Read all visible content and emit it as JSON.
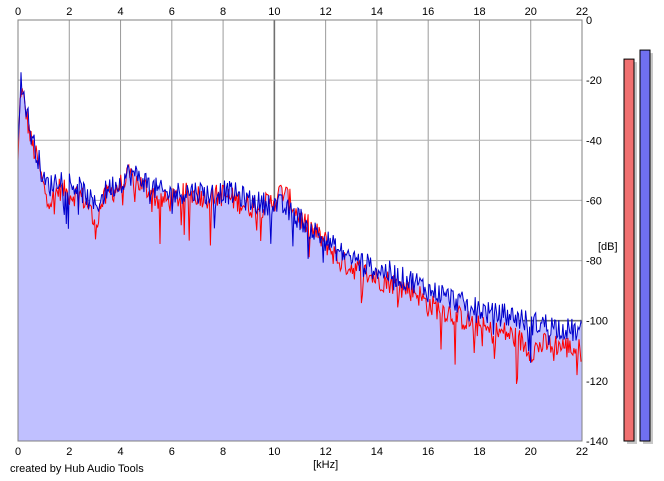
{
  "chart_data": {
    "type": "line",
    "title": "",
    "xlabel": "[kHz]",
    "ylabel": "[dB]",
    "xlim": [
      0,
      22
    ],
    "ylim": [
      -140,
      0
    ],
    "x_ticks": [
      "0",
      "2",
      "4",
      "6",
      "8",
      "10",
      "12",
      "14",
      "16",
      "18",
      "20",
      "22"
    ],
    "y_ticks": [
      "0",
      "-20",
      "-40",
      "-60",
      "-80",
      "-100",
      "-120",
      "-140"
    ],
    "grid": true,
    "series": [
      {
        "color": "#ff0000",
        "x": [
          0,
          0.1,
          0.3,
          0.5,
          0.8,
          1.0,
          1.3,
          1.6,
          2.0,
          2.4,
          2.8,
          3.0,
          3.2,
          3.5,
          4.0,
          4.3,
          4.7,
          5.0,
          5.5,
          6.0,
          6.5,
          7.0,
          7.5,
          8.0,
          8.5,
          9.0,
          9.5,
          10.0,
          10.3,
          10.6,
          11.0,
          11.5,
          12.0,
          12.5,
          13.0,
          13.5,
          14.0,
          14.5,
          15.0,
          15.5,
          16.0,
          16.5,
          17.0,
          17.5,
          18.0,
          18.5,
          19.0,
          19.5,
          20.0,
          20.5,
          21.0,
          21.5,
          22.0
        ],
        "values": [
          -48,
          -22,
          -30,
          -40,
          -48,
          -56,
          -60,
          -56,
          -58,
          -58,
          -62,
          -70,
          -62,
          -58,
          -55,
          -52,
          -54,
          -56,
          -60,
          -60,
          -58,
          -58,
          -59,
          -58,
          -60,
          -62,
          -62,
          -60,
          -57,
          -60,
          -66,
          -70,
          -74,
          -80,
          -82,
          -84,
          -86,
          -87,
          -89,
          -90,
          -95,
          -96,
          -98,
          -100,
          -102,
          -104,
          -104,
          -106,
          -110,
          -108,
          -108,
          -109,
          -110
        ]
      },
      {
        "color": "#0000cc",
        "x": [
          0,
          0.1,
          0.3,
          0.5,
          0.8,
          1.0,
          1.3,
          1.6,
          2.0,
          2.4,
          2.8,
          3.0,
          3.2,
          3.5,
          4.0,
          4.3,
          4.7,
          5.0,
          5.5,
          6.0,
          6.5,
          7.0,
          7.5,
          8.0,
          8.5,
          9.0,
          9.5,
          10.0,
          10.3,
          10.6,
          11.0,
          11.5,
          12.0,
          12.5,
          13.0,
          13.5,
          14.0,
          14.5,
          15.0,
          15.5,
          16.0,
          16.5,
          17.0,
          17.5,
          18.0,
          18.5,
          19.0,
          19.5,
          20.0,
          20.5,
          21.0,
          21.5,
          22.0
        ],
        "values": [
          -40,
          -20,
          -28,
          -38,
          -46,
          -54,
          -55,
          -52,
          -54,
          -56,
          -60,
          -62,
          -60,
          -56,
          -54,
          -51,
          -52,
          -54,
          -57,
          -58,
          -57,
          -57,
          -58,
          -57,
          -58,
          -60,
          -61,
          -61,
          -62,
          -64,
          -66,
          -70,
          -73,
          -77,
          -79,
          -81,
          -83,
          -84,
          -86,
          -87,
          -90,
          -91,
          -93,
          -95,
          -96,
          -98,
          -98,
          -99,
          -101,
          -101,
          -102,
          -103,
          -104
        ]
      }
    ]
  },
  "level_meters": [
    {
      "channel": "left",
      "color": "#f07070",
      "level_db": -13
    },
    {
      "channel": "right",
      "color": "#7070f0",
      "level_db": -10
    }
  ],
  "footer": {
    "credit": "created by Hub Audio Tools"
  }
}
